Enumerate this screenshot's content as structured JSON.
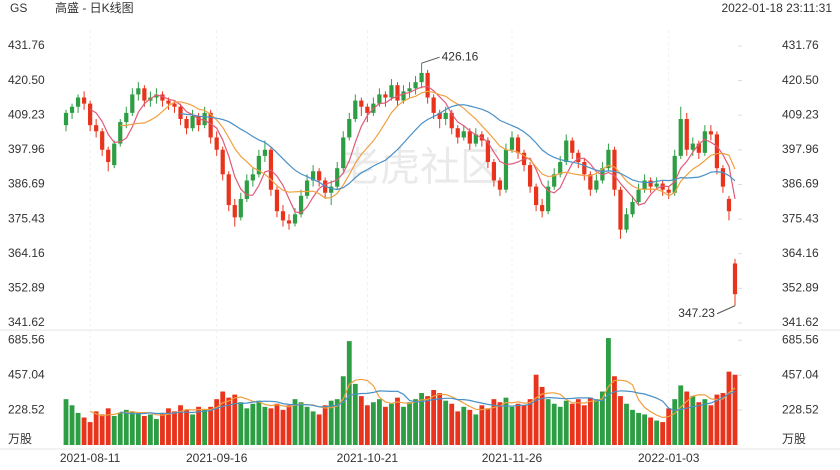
{
  "header": {
    "symbol": "GS",
    "name": "高盛 - 日K线图",
    "datetime": "2022-01-18 23:11:31",
    "watermark": "老虎社区"
  },
  "chart_data": [
    {
      "type": "candlestick",
      "categories": [
        null,
        null,
        null,
        null,
        "2021-08-11",
        null,
        null,
        null,
        null,
        null,
        null,
        null,
        null,
        null,
        null,
        null,
        null,
        null,
        null,
        null,
        null,
        null,
        null,
        null,
        null,
        "2021-09-16",
        null,
        null,
        null,
        null,
        null,
        null,
        null,
        null,
        null,
        null,
        null,
        null,
        null,
        null,
        null,
        null,
        null,
        null,
        null,
        null,
        null,
        null,
        null,
        null,
        "2021-10-21",
        null,
        null,
        null,
        null,
        null,
        null,
        null,
        null,
        null,
        null,
        null,
        null,
        null,
        null,
        null,
        null,
        null,
        null,
        null,
        null,
        null,
        null,
        null,
        "2021-11-26",
        null,
        null,
        null,
        null,
        null,
        null,
        null,
        null,
        null,
        null,
        null,
        null,
        null,
        null,
        null,
        null,
        null,
        null,
        null,
        null,
        null,
        null,
        null,
        null,
        null,
        "2022-01-03",
        null,
        null,
        null,
        null,
        null,
        null,
        null,
        null,
        null,
        null,
        null
      ],
      "open": [
        406,
        410,
        412,
        415,
        413,
        406,
        404,
        398,
        393,
        400,
        407,
        410,
        416,
        418,
        414,
        415,
        416,
        414,
        413,
        412,
        408,
        405,
        409,
        406,
        410,
        402,
        398,
        390,
        380,
        376,
        382,
        388,
        390,
        396,
        398,
        385,
        378,
        375,
        374,
        377,
        383,
        388,
        391,
        388,
        384,
        386,
        392,
        402,
        408,
        414,
        412,
        410,
        413,
        416,
        415,
        419,
        414,
        417,
        418,
        420,
        423,
        415,
        410,
        408,
        410,
        405,
        402,
        404,
        400,
        403,
        401,
        394,
        388,
        385,
        398,
        402,
        397,
        393,
        386,
        380,
        378,
        386,
        390,
        394,
        401,
        397,
        394,
        390,
        385,
        388,
        392,
        398,
        385,
        372,
        377,
        381,
        385,
        388,
        386,
        387,
        385,
        384,
        396,
        408,
        398,
        400,
        397,
        404,
        403,
        392,
        382,
        361
      ],
      "high": [
        411,
        413,
        416,
        417,
        414,
        408,
        405,
        399,
        401,
        408,
        412,
        418,
        420,
        419,
        417,
        418,
        417,
        415,
        414,
        413,
        409,
        411,
        410,
        412,
        411,
        404,
        399,
        391,
        382,
        384,
        390,
        392,
        398,
        401,
        399,
        386,
        380,
        377,
        379,
        385,
        390,
        393,
        392,
        389,
        388,
        394,
        404,
        410,
        416,
        415,
        413,
        415,
        418,
        417,
        421,
        420,
        419,
        420,
        422,
        426.16,
        424,
        416,
        411,
        412,
        411,
        406,
        406,
        405,
        405,
        404,
        402,
        395,
        389,
        400,
        404,
        403,
        398,
        394,
        387,
        382,
        388,
        392,
        396,
        403,
        402,
        398,
        395,
        391,
        390,
        394,
        400,
        399,
        386,
        379,
        383,
        387,
        390,
        389,
        389,
        388,
        386,
        398,
        412,
        410,
        402,
        401,
        406,
        406,
        404,
        393,
        383,
        362.5
      ],
      "low": [
        404,
        408,
        410,
        411,
        404,
        402,
        396,
        391,
        392,
        399,
        405,
        409,
        414,
        412,
        412,
        413,
        412,
        411,
        410,
        406,
        403,
        404,
        404,
        405,
        400,
        396,
        388,
        378,
        373,
        375,
        381,
        386,
        389,
        394,
        383,
        376,
        373,
        372,
        373,
        376,
        382,
        386,
        386,
        382,
        380,
        385,
        391,
        401,
        407,
        409,
        407,
        409,
        412,
        412,
        414,
        412,
        413,
        415,
        416,
        418,
        413,
        408,
        405,
        406,
        403,
        400,
        401,
        398,
        399,
        399,
        392,
        386,
        383,
        384,
        397,
        395,
        391,
        384,
        378,
        376,
        377,
        385,
        389,
        393,
        395,
        392,
        388,
        383,
        384,
        387,
        391,
        383,
        369,
        371,
        376,
        380,
        384,
        384,
        385,
        383,
        382,
        383,
        395,
        396,
        396,
        395,
        396,
        401,
        390,
        384,
        375,
        347.23
      ],
      "close": [
        410,
        412,
        415,
        413,
        406,
        404,
        398,
        394,
        400,
        407,
        410,
        416,
        418,
        414,
        415,
        416,
        414,
        413,
        412,
        408,
        405,
        409,
        406,
        410,
        402,
        398,
        390,
        380,
        376,
        382,
        388,
        390,
        396,
        398,
        385,
        378,
        375,
        374,
        377,
        383,
        388,
        391,
        388,
        384,
        386,
        392,
        402,
        408,
        414,
        412,
        410,
        413,
        416,
        415,
        419,
        414,
        417,
        418,
        420,
        423,
        415,
        410,
        408,
        410,
        405,
        402,
        404,
        400,
        403,
        401,
        394,
        388,
        385,
        398,
        402,
        397,
        393,
        386,
        380,
        378,
        386,
        390,
        394,
        401,
        397,
        394,
        390,
        385,
        388,
        392,
        398,
        385,
        372,
        377,
        381,
        385,
        388,
        386,
        387,
        385,
        384,
        396,
        408,
        398,
        400,
        397,
        404,
        403,
        392,
        386,
        378,
        351
      ],
      "up_color": "#2e9e44",
      "down_color": "#e8341c",
      "ma_periods": [
        5,
        10,
        20
      ],
      "ma_colors": [
        "#e05a78",
        "#f0a040",
        "#4a90c8"
      ],
      "ylim": [
        341.62,
        431.76
      ],
      "yticks": [
        341.62,
        352.89,
        364.16,
        375.43,
        386.69,
        397.96,
        409.23,
        {
          "value": 420.5,
          "label": "420.50"
        },
        431.76
      ]
    },
    {
      "type": "bar",
      "unit": "万股",
      "values": [
        300,
        260,
        210,
        180,
        150,
        220,
        200,
        240,
        190,
        210,
        230,
        220,
        210,
        190,
        200,
        170,
        210,
        240,
        220,
        260,
        230,
        200,
        250,
        230,
        250,
        300,
        350,
        310,
        330,
        280,
        240,
        270,
        290,
        250,
        240,
        270,
        230,
        260,
        300,
        280,
        250,
        220,
        200,
        260,
        290,
        300,
        450,
        680,
        400,
        320,
        260,
        280,
        300,
        250,
        270,
        310,
        250,
        280,
        300,
        340,
        320,
        360,
        340,
        290,
        270,
        220,
        250,
        230,
        200,
        260,
        240,
        300,
        280,
        310,
        250,
        270,
        260,
        300,
        460,
        380,
        300,
        270,
        250,
        290,
        270,
        300,
        260,
        310,
        300,
        350,
        700,
        450,
        320,
        270,
        230,
        210,
        200,
        180,
        160,
        150,
        240,
        300,
        390,
        350,
        320,
        280,
        300,
        260,
        330,
        340,
        480,
        460
      ],
      "ma_periods": [
        5,
        10
      ],
      "ma_colors": [
        "#f0a040",
        "#4a90c8"
      ],
      "ylim": [
        0,
        720
      ],
      "yticks": [
        228.52,
        457.04,
        685.56
      ]
    }
  ]
}
